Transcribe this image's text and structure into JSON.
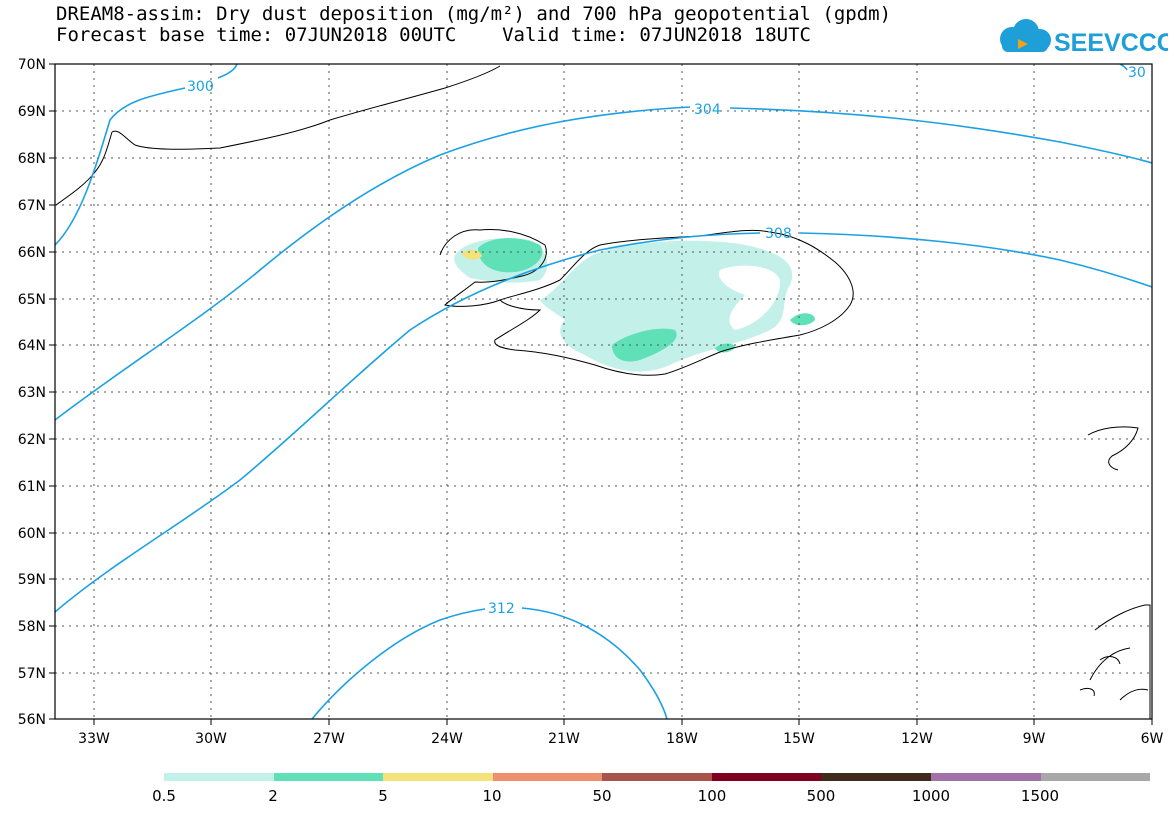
{
  "title": {
    "line1": "DREAM8-assim: Dry dust deposition (mg/m²) and 700 hPa geopotential (gpdm)",
    "line2": "Forecast base time: 07JUN2018 00UTC    Valid time: 07JUN2018 18UTC"
  },
  "logo": {
    "text": "SEEVCCC",
    "icon": "cloud-icon",
    "color": "#1e9fd8",
    "accent": "#f2a21b"
  },
  "map": {
    "lat_labels": [
      "70N",
      "69N",
      "68N",
      "67N",
      "66N",
      "65N",
      "64N",
      "63N",
      "62N",
      "61N",
      "60N",
      "59N",
      "58N",
      "57N",
      "56N"
    ],
    "lon_labels": [
      "33W",
      "30W",
      "27W",
      "24W",
      "21W",
      "18W",
      "15W",
      "12W",
      "9W",
      "6W"
    ],
    "contour_color": "#1ba1e2",
    "contour_labels": [
      "300",
      "304",
      "308",
      "312",
      "30"
    ]
  },
  "legend": {
    "colors": [
      "#c4f0ea",
      "#5fe0b7",
      "#f4e27a",
      "#ee8f6e",
      "#a9534d",
      "#800020",
      "#3f2a1c",
      "#a072a8",
      "#a8a8a8"
    ],
    "labels": [
      "0.5",
      "2",
      "5",
      "10",
      "50",
      "100",
      "500",
      "1000",
      "1500"
    ]
  }
}
